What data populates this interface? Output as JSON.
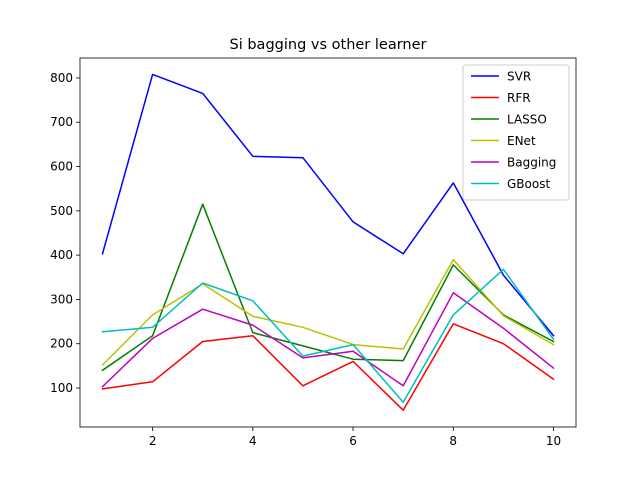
{
  "chart_data": {
    "type": "line",
    "title": "Si bagging vs other learner",
    "xlabel": "",
    "ylabel": "",
    "x": [
      1,
      2,
      3,
      4,
      5,
      6,
      7,
      8,
      9,
      10
    ],
    "xlim": [
      0.55,
      10.45
    ],
    "ylim": [
      12,
      845
    ],
    "xticks": [
      2,
      4,
      6,
      8,
      10
    ],
    "yticks": [
      100,
      200,
      300,
      400,
      500,
      600,
      700,
      800
    ],
    "grid": false,
    "legend_position": "top-right",
    "series": [
      {
        "name": "SVR",
        "color": "#0000ff",
        "values": [
          403,
          808,
          765,
          623,
          620,
          475,
          403,
          563,
          355,
          218
        ]
      },
      {
        "name": "RFR",
        "color": "#ff0000",
        "values": [
          98,
          114,
          205,
          218,
          105,
          160,
          50,
          245,
          200,
          120
        ]
      },
      {
        "name": "LASSO",
        "color": "#008000",
        "values": [
          140,
          218,
          515,
          225,
          195,
          165,
          162,
          378,
          265,
          205
        ]
      },
      {
        "name": "ENet",
        "color": "#bfbf00",
        "values": [
          152,
          265,
          335,
          262,
          237,
          198,
          188,
          390,
          263,
          198
        ]
      },
      {
        "name": "Bagging",
        "color": "#bf00bf",
        "values": [
          103,
          212,
          278,
          242,
          168,
          183,
          105,
          315,
          235,
          145
        ]
      },
      {
        "name": "GBoost",
        "color": "#00bfbf",
        "values": [
          227,
          237,
          337,
          297,
          172,
          198,
          68,
          265,
          368,
          210
        ]
      }
    ]
  }
}
